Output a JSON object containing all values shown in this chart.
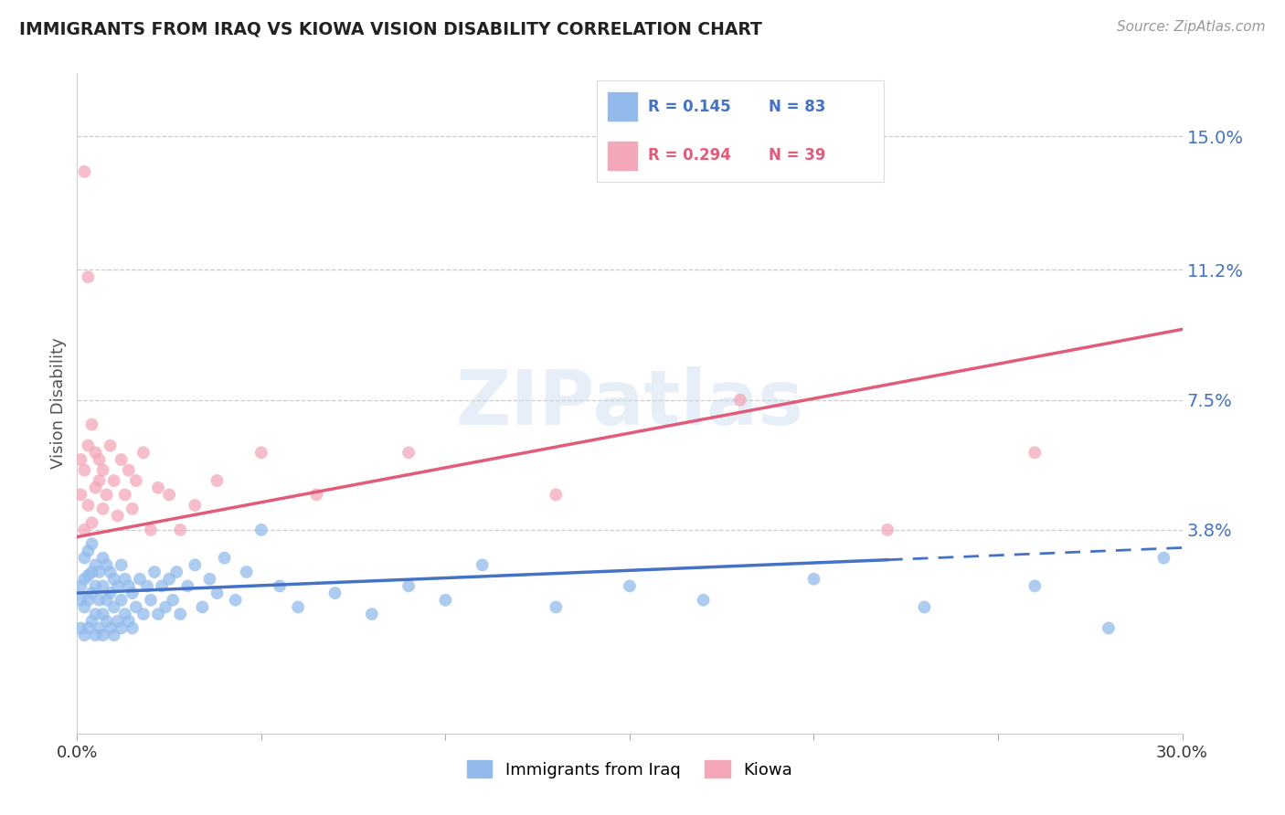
{
  "title": "IMMIGRANTS FROM IRAQ VS KIOWA VISION DISABILITY CORRELATION CHART",
  "source": "Source: ZipAtlas.com",
  "ylabel": "Vision Disability",
  "xlim": [
    0.0,
    0.3
  ],
  "ylim": [
    -0.02,
    0.168
  ],
  "xticks": [
    0.0,
    0.05,
    0.1,
    0.15,
    0.2,
    0.25,
    0.3
  ],
  "ytick_positions": [
    0.038,
    0.075,
    0.112,
    0.15
  ],
  "ytick_labels": [
    "3.8%",
    "7.5%",
    "11.2%",
    "15.0%"
  ],
  "blue_R": 0.145,
  "blue_N": 83,
  "pink_R": 0.294,
  "pink_N": 39,
  "blue_color": "#92BBEC",
  "pink_color": "#F4A7B9",
  "blue_line_color": "#4472C4",
  "pink_line_color": "#E05C7A",
  "legend_blue_label": "Immigrants from Iraq",
  "legend_pink_label": "Kiowa",
  "blue_scatter_x": [
    0.001,
    0.001,
    0.001,
    0.002,
    0.002,
    0.002,
    0.002,
    0.003,
    0.003,
    0.003,
    0.003,
    0.004,
    0.004,
    0.004,
    0.004,
    0.005,
    0.005,
    0.005,
    0.005,
    0.006,
    0.006,
    0.006,
    0.007,
    0.007,
    0.007,
    0.007,
    0.008,
    0.008,
    0.008,
    0.009,
    0.009,
    0.009,
    0.01,
    0.01,
    0.01,
    0.011,
    0.011,
    0.012,
    0.012,
    0.012,
    0.013,
    0.013,
    0.014,
    0.014,
    0.015,
    0.015,
    0.016,
    0.017,
    0.018,
    0.019,
    0.02,
    0.021,
    0.022,
    0.023,
    0.024,
    0.025,
    0.026,
    0.027,
    0.028,
    0.03,
    0.032,
    0.034,
    0.036,
    0.038,
    0.04,
    0.043,
    0.046,
    0.05,
    0.055,
    0.06,
    0.07,
    0.08,
    0.09,
    0.1,
    0.11,
    0.13,
    0.15,
    0.17,
    0.2,
    0.23,
    0.26,
    0.28,
    0.295
  ],
  "blue_scatter_y": [
    0.01,
    0.018,
    0.022,
    0.008,
    0.016,
    0.024,
    0.03,
    0.01,
    0.018,
    0.025,
    0.032,
    0.012,
    0.02,
    0.026,
    0.034,
    0.008,
    0.014,
    0.022,
    0.028,
    0.01,
    0.018,
    0.026,
    0.008,
    0.014,
    0.022,
    0.03,
    0.012,
    0.018,
    0.028,
    0.01,
    0.02,
    0.026,
    0.008,
    0.016,
    0.024,
    0.012,
    0.022,
    0.01,
    0.018,
    0.028,
    0.014,
    0.024,
    0.012,
    0.022,
    0.01,
    0.02,
    0.016,
    0.024,
    0.014,
    0.022,
    0.018,
    0.026,
    0.014,
    0.022,
    0.016,
    0.024,
    0.018,
    0.026,
    0.014,
    0.022,
    0.028,
    0.016,
    0.024,
    0.02,
    0.03,
    0.018,
    0.026,
    0.038,
    0.022,
    0.016,
    0.02,
    0.014,
    0.022,
    0.018,
    0.028,
    0.016,
    0.022,
    0.018,
    0.024,
    0.016,
    0.022,
    0.01,
    0.03
  ],
  "pink_scatter_x": [
    0.001,
    0.001,
    0.002,
    0.002,
    0.003,
    0.003,
    0.004,
    0.004,
    0.005,
    0.005,
    0.006,
    0.006,
    0.007,
    0.007,
    0.008,
    0.009,
    0.01,
    0.011,
    0.012,
    0.013,
    0.014,
    0.015,
    0.016,
    0.018,
    0.02,
    0.022,
    0.025,
    0.028,
    0.032,
    0.038,
    0.05,
    0.065,
    0.09,
    0.13,
    0.18,
    0.22,
    0.26,
    0.002,
    0.003
  ],
  "pink_scatter_y": [
    0.048,
    0.058,
    0.038,
    0.055,
    0.045,
    0.062,
    0.04,
    0.068,
    0.05,
    0.06,
    0.052,
    0.058,
    0.044,
    0.055,
    0.048,
    0.062,
    0.052,
    0.042,
    0.058,
    0.048,
    0.055,
    0.044,
    0.052,
    0.06,
    0.038,
    0.05,
    0.048,
    0.038,
    0.045,
    0.052,
    0.06,
    0.048,
    0.06,
    0.048,
    0.075,
    0.038,
    0.06,
    0.14,
    0.11
  ]
}
